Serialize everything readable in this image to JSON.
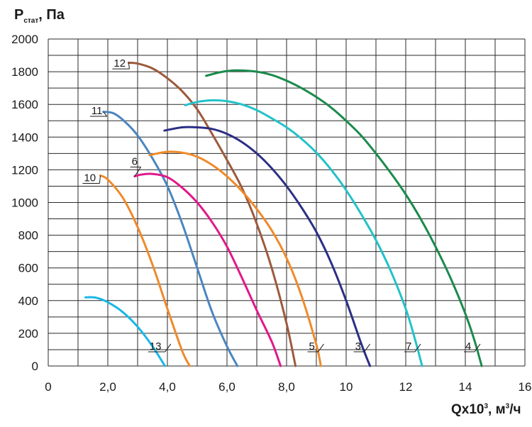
{
  "chart_data": {
    "type": "line",
    "ylabel_main": "P",
    "ylabel_sub": "стат",
    "ylabel_unit": ", Па",
    "xlabel_main": "Qx10",
    "xlabel_sup": "3",
    "xlabel_mid": ", м",
    "xlabel_sup2": "3",
    "xlabel_end": "/ч",
    "xlim": [
      0,
      16
    ],
    "ylim": [
      0,
      2000
    ],
    "grid": true,
    "x_ticks": [
      "0",
      "2,0",
      "4,0",
      "6,0",
      "8,0",
      "10",
      "12",
      "14",
      "16"
    ],
    "y_ticks": [
      "0",
      "200",
      "400",
      "600",
      "800",
      "1000",
      "1200",
      "1400",
      "1600",
      "1800",
      "2000"
    ],
    "series": [
      {
        "name": "13",
        "color": "#1ab7e6",
        "label_at": [
          3.4,
          100
        ],
        "points": [
          [
            1.25,
            420
          ],
          [
            1.6,
            418
          ],
          [
            2.0,
            390
          ],
          [
            2.5,
            330
          ],
          [
            3.0,
            240
          ],
          [
            3.5,
            120
          ],
          [
            3.92,
            0
          ]
        ]
      },
      {
        "name": "10",
        "color": "#f08a2a",
        "label_at": [
          1.2,
          1130
        ],
        "points": [
          [
            1.75,
            1165
          ],
          [
            2.0,
            1140
          ],
          [
            2.5,
            1030
          ],
          [
            3.0,
            850
          ],
          [
            3.5,
            620
          ],
          [
            4.0,
            350
          ],
          [
            4.5,
            90
          ],
          [
            4.75,
            0
          ]
        ]
      },
      {
        "name": "11",
        "color": "#4a86c0",
        "label_at": [
          1.45,
          1540
        ],
        "points": [
          [
            1.85,
            1555
          ],
          [
            2.2,
            1545
          ],
          [
            2.6,
            1490
          ],
          [
            3.0,
            1410
          ],
          [
            3.5,
            1270
          ],
          [
            4.0,
            1100
          ],
          [
            4.5,
            870
          ],
          [
            5.0,
            600
          ],
          [
            5.5,
            330
          ],
          [
            6.0,
            120
          ],
          [
            6.35,
            0
          ]
        ]
      },
      {
        "name": "6",
        "color": "#e0198a",
        "label_at": [
          2.8,
          1230
        ],
        "points": [
          [
            2.9,
            1160
          ],
          [
            3.1,
            1170
          ],
          [
            3.5,
            1175
          ],
          [
            4.0,
            1155
          ],
          [
            4.5,
            1090
          ],
          [
            5.0,
            1000
          ],
          [
            5.5,
            880
          ],
          [
            6.0,
            730
          ],
          [
            6.5,
            540
          ],
          [
            7.0,
            340
          ],
          [
            7.5,
            150
          ],
          [
            7.8,
            0
          ]
        ]
      },
      {
        "name": "12",
        "color": "#9c5a3c",
        "label_at": [
          2.2,
          1830
        ],
        "points": [
          [
            2.7,
            1855
          ],
          [
            3.0,
            1850
          ],
          [
            3.5,
            1820
          ],
          [
            4.0,
            1760
          ],
          [
            4.5,
            1680
          ],
          [
            5.0,
            1570
          ],
          [
            5.5,
            1420
          ],
          [
            6.0,
            1260
          ],
          [
            6.5,
            1090
          ],
          [
            7.0,
            870
          ],
          [
            7.5,
            600
          ],
          [
            8.0,
            260
          ],
          [
            8.3,
            0
          ]
        ]
      },
      {
        "name": "5",
        "color": "#f08a2a",
        "label_at": [
          8.75,
          100
        ],
        "points": [
          [
            3.4,
            1290
          ],
          [
            4.0,
            1310
          ],
          [
            4.5,
            1305
          ],
          [
            5.0,
            1280
          ],
          [
            5.5,
            1230
          ],
          [
            6.0,
            1160
          ],
          [
            6.5,
            1070
          ],
          [
            7.0,
            960
          ],
          [
            7.5,
            830
          ],
          [
            8.0,
            660
          ],
          [
            8.5,
            430
          ],
          [
            9.0,
            130
          ],
          [
            9.15,
            0
          ]
        ]
      },
      {
        "name": "3",
        "color": "#2b2f85",
        "label_at": [
          10.3,
          100
        ],
        "points": [
          [
            3.9,
            1440
          ],
          [
            4.5,
            1460
          ],
          [
            5.0,
            1460
          ],
          [
            5.5,
            1450
          ],
          [
            6.0,
            1420
          ],
          [
            6.5,
            1370
          ],
          [
            7.0,
            1300
          ],
          [
            7.5,
            1210
          ],
          [
            8.0,
            1100
          ],
          [
            8.5,
            970
          ],
          [
            9.0,
            820
          ],
          [
            9.5,
            630
          ],
          [
            10.0,
            400
          ],
          [
            10.5,
            140
          ],
          [
            10.8,
            0
          ]
        ]
      },
      {
        "name": "7",
        "color": "#22c2c8",
        "label_at": [
          12.0,
          100
        ],
        "points": [
          [
            4.6,
            1595
          ],
          [
            5.0,
            1615
          ],
          [
            5.5,
            1625
          ],
          [
            6.0,
            1620
          ],
          [
            6.5,
            1600
          ],
          [
            7.0,
            1565
          ],
          [
            7.5,
            1515
          ],
          [
            8.0,
            1460
          ],
          [
            8.5,
            1390
          ],
          [
            9.0,
            1305
          ],
          [
            9.5,
            1200
          ],
          [
            10.0,
            1075
          ],
          [
            10.5,
            930
          ],
          [
            11.0,
            770
          ],
          [
            11.5,
            580
          ],
          [
            12.0,
            350
          ],
          [
            12.3,
            170
          ],
          [
            12.55,
            0
          ]
        ]
      },
      {
        "name": "4",
        "color": "#1a8b4c",
        "label_at": [
          14.0,
          100
        ],
        "points": [
          [
            5.3,
            1775
          ],
          [
            5.8,
            1798
          ],
          [
            6.3,
            1808
          ],
          [
            7.0,
            1800
          ],
          [
            7.5,
            1780
          ],
          [
            8.0,
            1745
          ],
          [
            8.5,
            1700
          ],
          [
            9.0,
            1645
          ],
          [
            9.5,
            1580
          ],
          [
            10.0,
            1500
          ],
          [
            10.5,
            1410
          ],
          [
            11.0,
            1300
          ],
          [
            11.5,
            1180
          ],
          [
            12.0,
            1050
          ],
          [
            12.5,
            900
          ],
          [
            13.0,
            730
          ],
          [
            13.5,
            540
          ],
          [
            14.0,
            320
          ],
          [
            14.3,
            160
          ],
          [
            14.55,
            0
          ]
        ]
      }
    ]
  }
}
